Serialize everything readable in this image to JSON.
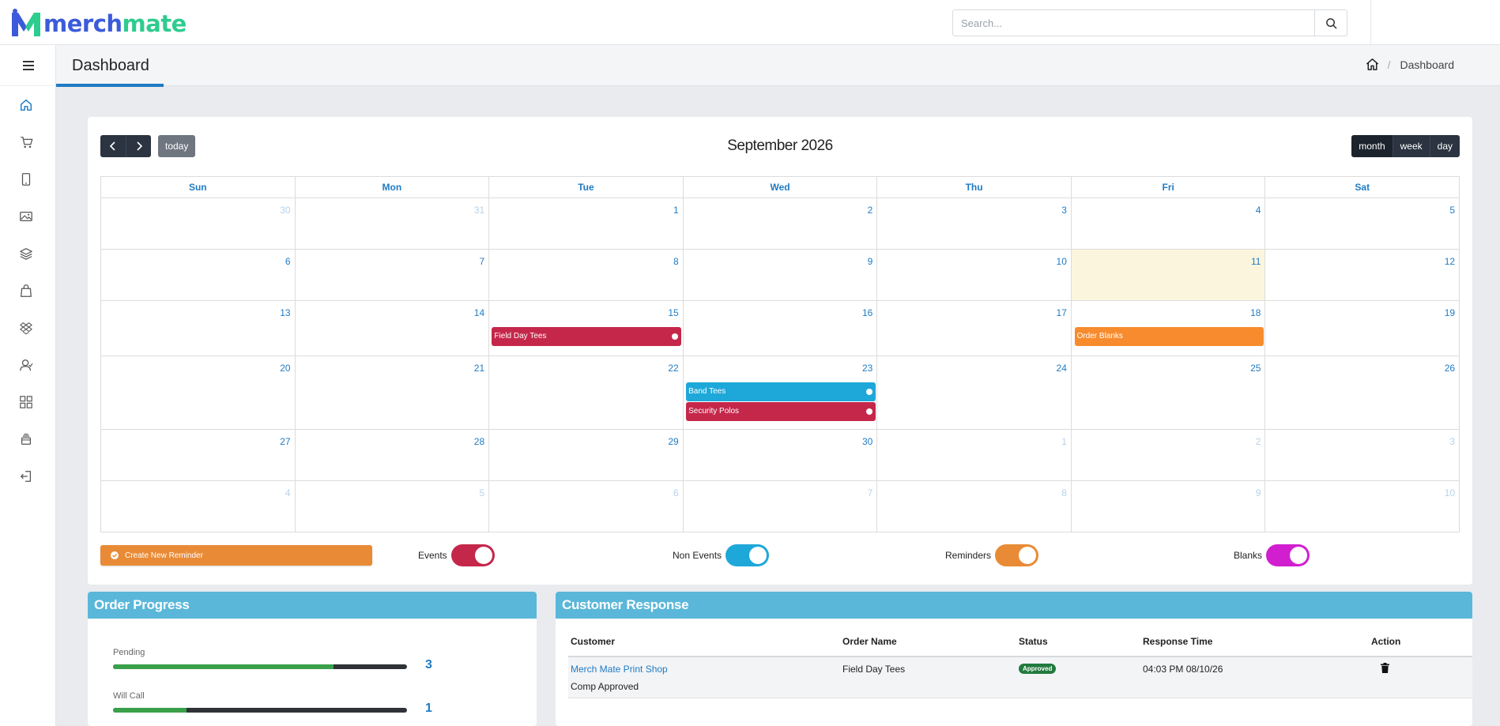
{
  "brand": {
    "prefix": "merch",
    "suffix": "mate"
  },
  "search": {
    "placeholder": "Search..."
  },
  "page": {
    "title": "Dashboard"
  },
  "breadcrumb": {
    "current": "Dashboard"
  },
  "sidebar": {
    "items": [
      "home-icon",
      "cart-icon",
      "tablet-icon",
      "image-icon",
      "layers-icon",
      "shopping-bag-icon",
      "dropbox-icon",
      "users-icon",
      "grid-icon",
      "stack-icon",
      "logout-icon"
    ]
  },
  "calendar": {
    "title": "September 2026",
    "today_label": "today",
    "views": [
      "month",
      "week",
      "day"
    ],
    "weekdays": [
      "Sun",
      "Mon",
      "Tue",
      "Wed",
      "Thu",
      "Fri",
      "Sat"
    ],
    "weeks": [
      [
        {
          "n": "30",
          "o": true
        },
        {
          "n": "31",
          "o": true
        },
        {
          "n": "1"
        },
        {
          "n": "2"
        },
        {
          "n": "3"
        },
        {
          "n": "4"
        },
        {
          "n": "5"
        }
      ],
      [
        {
          "n": "6"
        },
        {
          "n": "7"
        },
        {
          "n": "8"
        },
        {
          "n": "9"
        },
        {
          "n": "10"
        },
        {
          "n": "11",
          "t": true
        },
        {
          "n": "12"
        }
      ],
      [
        {
          "n": "13"
        },
        {
          "n": "14"
        },
        {
          "n": "15"
        },
        {
          "n": "16"
        },
        {
          "n": "17"
        },
        {
          "n": "18"
        },
        {
          "n": "19"
        }
      ],
      [
        {
          "n": "20"
        },
        {
          "n": "21"
        },
        {
          "n": "22"
        },
        {
          "n": "23"
        },
        {
          "n": "24"
        },
        {
          "n": "25"
        },
        {
          "n": "26"
        }
      ],
      [
        {
          "n": "27"
        },
        {
          "n": "28"
        },
        {
          "n": "29"
        },
        {
          "n": "30"
        },
        {
          "n": "1",
          "o": true
        },
        {
          "n": "2",
          "o": true
        },
        {
          "n": "3",
          "o": true
        }
      ],
      [
        {
          "n": "4",
          "o": true
        },
        {
          "n": "5",
          "o": true
        },
        {
          "n": "6",
          "o": true
        },
        {
          "n": "7",
          "o": true
        },
        {
          "n": "8",
          "o": true
        },
        {
          "n": "9",
          "o": true
        },
        {
          "n": "10",
          "o": true
        }
      ]
    ],
    "events": [
      {
        "title": "Field Day Tees",
        "week": 2,
        "day": 2,
        "slot": 0,
        "color": "#c5274a",
        "dot": true
      },
      {
        "title": "Order Blanks",
        "week": 2,
        "day": 5,
        "slot": 0,
        "color": "#f78b2d",
        "dot": false
      },
      {
        "title": "Band Tees",
        "week": 3,
        "day": 3,
        "slot": 0,
        "color": "#1ea8d9",
        "dot": true
      },
      {
        "title": "Security Polos",
        "week": 3,
        "day": 3,
        "slot": 1,
        "color": "#c5274a",
        "dot": true
      }
    ]
  },
  "reminder_button": {
    "label": "Create New Reminder"
  },
  "toggles": [
    {
      "label": "Events",
      "color": "#c5274a"
    },
    {
      "label": "Non Events",
      "color": "#1ea8d9"
    },
    {
      "label": "Reminders",
      "color": "#e98b36"
    },
    {
      "label": "Blanks",
      "color": "#d11fcf"
    }
  ],
  "order_progress": {
    "title": "Order Progress",
    "items": [
      {
        "label": "Pending",
        "value": "3",
        "fraction": 0.75
      },
      {
        "label": "Will Call",
        "value": "1",
        "fraction": 0.25
      }
    ]
  },
  "customer_response": {
    "title": "Customer Response",
    "columns": [
      "Customer",
      "Order Name",
      "Status",
      "Response Time",
      "Action"
    ],
    "rows": [
      {
        "customer": "Merch Mate Print Shop",
        "note": "Comp Approved",
        "order_name": "Field Day Tees",
        "status": "Approved",
        "response_time": "04:03 PM 08/10/26",
        "action_icon": "trash-icon"
      }
    ]
  }
}
